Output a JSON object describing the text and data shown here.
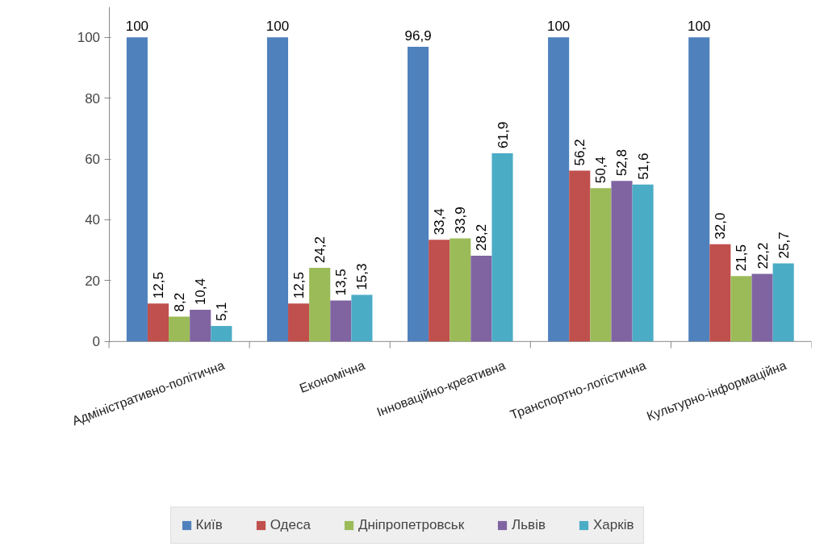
{
  "chart_data": {
    "type": "bar",
    "categories": [
      "Адміністративно-політична",
      "Економічна",
      "Інноваційно-креативна",
      "Транспортно-логістична",
      "Культурно-інформаційна"
    ],
    "series": [
      {
        "name": "Київ",
        "color": "#4f81bd",
        "values": [
          100,
          100,
          96.9,
          100,
          100
        ],
        "value_labels": [
          "100",
          "100",
          "96,9",
          "100",
          "100"
        ]
      },
      {
        "name": "Одеса",
        "color": "#c0504d",
        "values": [
          12.5,
          12.5,
          33.4,
          56.2,
          32.0
        ],
        "value_labels": [
          "12,5",
          "12,5",
          "33,4",
          "56,2",
          "32,0"
        ]
      },
      {
        "name": "Дніпропетровськ",
        "color": "#9bbb59",
        "values": [
          8.2,
          24.2,
          33.9,
          50.4,
          21.5
        ],
        "value_labels": [
          "8,2",
          "24,2",
          "33,9",
          "50,4",
          "21,5"
        ]
      },
      {
        "name": "Львів",
        "color": "#8064a2",
        "values": [
          10.4,
          13.5,
          28.2,
          52.8,
          22.2
        ],
        "value_labels": [
          "10,4",
          "13,5",
          "28,2",
          "52,8",
          "22,2"
        ]
      },
      {
        "name": "Харків",
        "color": "#4bacc6",
        "values": [
          5.1,
          15.3,
          61.9,
          51.6,
          25.7
        ],
        "value_labels": [
          "5,1",
          "15,3",
          "61,9",
          "51,6",
          "25,7"
        ]
      }
    ],
    "ylim": [
      0,
      110
    ],
    "yticks": [
      0,
      20,
      40,
      60,
      80,
      100
    ],
    "grid": false,
    "legend": "bottom"
  }
}
